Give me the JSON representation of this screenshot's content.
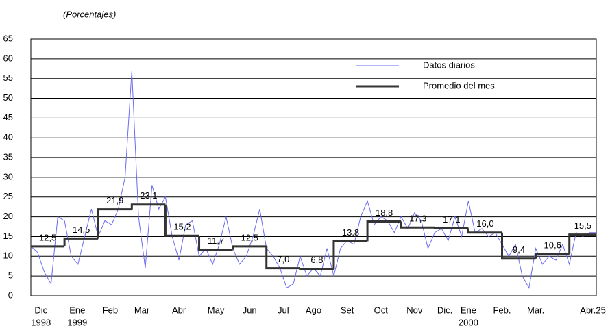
{
  "chart_data": {
    "type": "line",
    "subtitle": "(Porcentajes)",
    "series": [
      {
        "name": "Datos diarios",
        "color": "#6a6af0",
        "x": [
          0,
          0.2,
          0.4,
          0.6,
          0.8,
          1.0,
          1.2,
          1.4,
          1.6,
          1.8,
          2.0,
          2.2,
          2.4,
          2.6,
          2.8,
          3.0,
          3.2,
          3.4,
          3.6,
          3.8,
          4.0,
          4.2,
          4.4,
          4.6,
          4.8,
          5.0,
          5.2,
          5.4,
          5.6,
          5.8,
          6.0,
          6.2,
          6.4,
          6.6,
          6.8,
          7.0,
          7.2,
          7.4,
          7.6,
          7.8,
          8.0,
          8.2,
          8.4,
          8.6,
          8.8,
          9.0,
          9.2,
          9.4,
          9.6,
          9.8,
          10.0,
          10.2,
          10.4,
          10.6,
          10.8,
          11.0,
          11.2,
          11.4,
          11.6,
          11.8,
          12.0,
          12.2,
          12.4,
          12.6,
          12.8,
          13.0,
          13.2,
          13.4,
          13.6,
          13.8,
          14.0,
          14.2,
          14.4,
          14.6,
          14.8,
          15.0,
          15.2,
          15.4,
          15.6,
          15.8,
          16.0,
          16.2,
          16.4,
          16.6,
          16.8
        ],
        "values": [
          12.5,
          11,
          6,
          3,
          20,
          19,
          10,
          8,
          15,
          22,
          15,
          19,
          18,
          22,
          30,
          57,
          20,
          7,
          28,
          22,
          25,
          15,
          9,
          18,
          19,
          10,
          12,
          8,
          13,
          20,
          12,
          8,
          10,
          15,
          22,
          12,
          10,
          7,
          2,
          3,
          10,
          5,
          7,
          5,
          12,
          5,
          12,
          14,
          13,
          20,
          24,
          18,
          20,
          19,
          16,
          20,
          17,
          21,
          19,
          12,
          16,
          17,
          14,
          20,
          15,
          24,
          16,
          17,
          15,
          16,
          13,
          10,
          13,
          5,
          2,
          12,
          8,
          10,
          9,
          13,
          8,
          16,
          15,
          16,
          16
        ]
      },
      {
        "name": "Promedio del mes",
        "color": "#333333",
        "step": true,
        "x": [
          0,
          1,
          2,
          3,
          4,
          5,
          6,
          7,
          8,
          9,
          10,
          11,
          12,
          13,
          14,
          15,
          16
        ],
        "values": [
          12.5,
          14.5,
          21.9,
          23.1,
          15.2,
          11.7,
          12.5,
          7.0,
          6.8,
          13.8,
          18.8,
          17.3,
          17.1,
          16.0,
          9.4,
          10.6,
          15.5
        ],
        "value_labels": [
          "12,5",
          "14,5",
          "21,9",
          "23,1",
          "15,2",
          "11,7",
          "12,5",
          "7,0",
          "6,8",
          "13,8",
          "18,8",
          "17,3",
          "17,1",
          "16,0",
          "9,4",
          "10,6",
          "15,5"
        ]
      }
    ],
    "xlim": [
      0,
      16.8
    ],
    "xticks": [
      {
        "value": 0.3,
        "label": "Dic"
      },
      {
        "value": 1.38,
        "label": "Ene"
      },
      {
        "value": 2.36,
        "label": "Feb"
      },
      {
        "value": 3.3,
        "label": "Mar"
      },
      {
        "value": 4.4,
        "label": "Abr"
      },
      {
        "value": 5.5,
        "label": "May"
      },
      {
        "value": 6.5,
        "label": "Jun"
      },
      {
        "value": 7.5,
        "label": "Jul"
      },
      {
        "value": 8.4,
        "label": "Ago"
      },
      {
        "value": 9.4,
        "label": "Set"
      },
      {
        "value": 10.4,
        "label": "Oct"
      },
      {
        "value": 11.4,
        "label": "Nov"
      },
      {
        "value": 12.3,
        "label": "Dic."
      },
      {
        "value": 13.0,
        "label": "Ene"
      },
      {
        "value": 14.0,
        "label": "Feb."
      },
      {
        "value": 15.0,
        "label": "Mar."
      },
      {
        "value": 16.7,
        "label": "Abr.25"
      }
    ],
    "x_year_labels": [
      {
        "value": 0.3,
        "label": "1998"
      },
      {
        "value": 1.38,
        "label": "1999"
      },
      {
        "value": 13.0,
        "label": "2000"
      }
    ],
    "ylim": [
      0,
      65
    ],
    "yticks": [
      0,
      5,
      10,
      15,
      20,
      25,
      30,
      35,
      40,
      45,
      50,
      55,
      60,
      65
    ],
    "grid": true
  }
}
